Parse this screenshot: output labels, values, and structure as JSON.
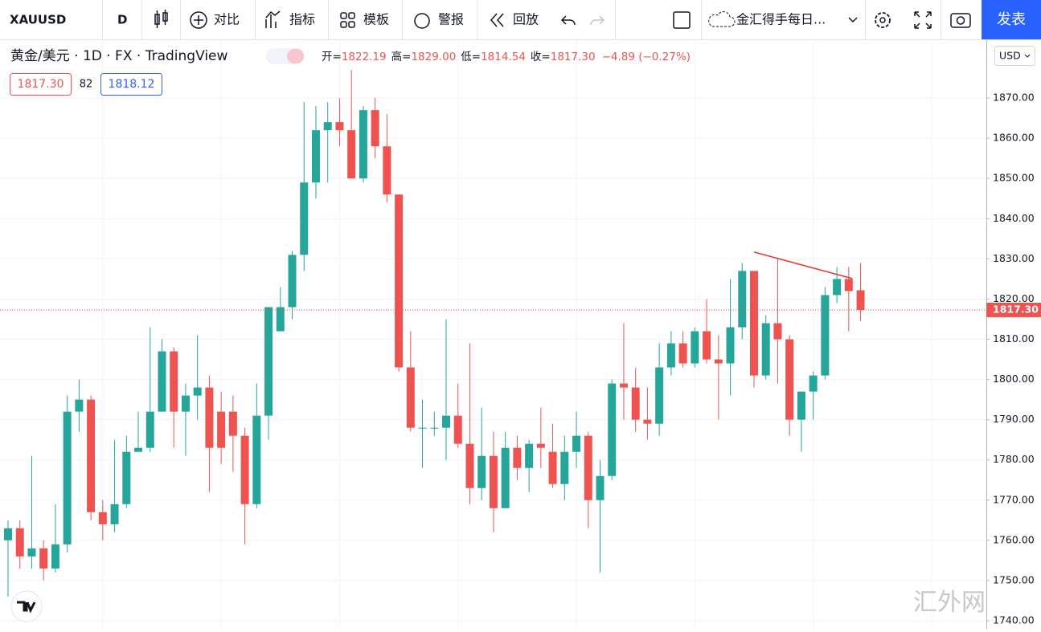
{
  "toolbar": {
    "symbol": "XAUUSD",
    "interval": "D",
    "compare": "对比",
    "indicators": "指标",
    "templates": "模板",
    "alerts": "警报",
    "replay": "回放",
    "layout_name": "金汇得手每日...",
    "publish": "发表"
  },
  "header": {
    "title": "黄金/美元 · 1D · FX · TradingView",
    "ohlc": [
      {
        "label": "开=",
        "value": "1822.19"
      },
      {
        "label": "高=",
        "value": "1829.00"
      },
      {
        "label": "低=",
        "value": "1814.54"
      },
      {
        "label": "收=",
        "value": "1817.30"
      }
    ],
    "change": "−4.89 (−0.27%)",
    "bid": "1817.30",
    "spread": "82",
    "ask": "1818.12"
  },
  "currency": "USD",
  "watermark": "汇外网",
  "chart_data": {
    "type": "candlestick",
    "up_color": "#26a69a",
    "down_color": "#ef5350",
    "open": [
      1760,
      1763,
      1756,
      1758,
      1753,
      1759,
      1792,
      1795,
      1767,
      1764,
      1769,
      1782,
      1783,
      1792,
      1807,
      1792,
      1796,
      1798,
      1792,
      1792,
      1786,
      1769,
      1791,
      1812,
      1818,
      1831,
      1849,
      1862,
      1864,
      1862,
      1850,
      1867,
      1858,
      1846,
      1803,
      1788,
      1788,
      1788,
      1791,
      1784,
      1773,
      1781,
      1768,
      1783,
      1778,
      1784,
      1782,
      1774,
      1782,
      1786,
      1770,
      1776,
      1799,
      1798,
      1790,
      1789,
      1803,
      1809,
      1804,
      1812,
      1805,
      1804,
      1813,
      1827,
      1801,
      1814,
      1810,
      1790,
      1797,
      1801,
      1821,
      1825,
      1822.19
    ],
    "high": [
      1765,
      1765,
      1781,
      1760,
      1769,
      1796,
      1800,
      1796,
      1770,
      1785,
      1786,
      1792,
      1813,
      1810,
      1808,
      1799,
      1811,
      1801,
      1797,
      1796,
      1788,
      1799,
      1818,
      1823,
      1832,
      1869,
      1868,
      1869,
      1870,
      1877,
      1868,
      1870,
      1866,
      1846,
      1812,
      1795,
      1792,
      1815,
      1799,
      1809,
      1793,
      1787,
      1787,
      1786,
      1785,
      1793,
      1789,
      1786,
      1792,
      1787,
      1780,
      1800,
      1814,
      1803,
      1798,
      1809,
      1812,
      1812,
      1813,
      1820,
      1811,
      1825,
      1829,
      1827,
      1816,
      1830,
      1811,
      1797,
      1802,
      1823,
      1828,
      1828,
      1829
    ],
    "low": [
      1746,
      1753,
      1753,
      1750,
      1752,
      1757,
      1787,
      1765,
      1760,
      1762,
      1768,
      1782,
      1782,
      1792,
      1783,
      1781,
      1790,
      1772,
      1779,
      1777,
      1759,
      1768,
      1785,
      1812,
      1815,
      1827,
      1845,
      1849,
      1858,
      1850,
      1849,
      1855,
      1844,
      1802,
      1787,
      1778,
      1786,
      1780,
      1783,
      1769,
      1770,
      1762,
      1768,
      1775,
      1772,
      1778,
      1773,
      1770,
      1778,
      1763,
      1752,
      1775,
      1790,
      1787,
      1785,
      1786,
      1801,
      1803,
      1803,
      1804,
      1790,
      1796,
      1810,
      1798,
      1800,
      1799,
      1786,
      1782,
      1790,
      1800,
      1819,
      1812,
      1814.54
    ],
    "close": [
      1763,
      1756,
      1758,
      1753,
      1759,
      1792,
      1795,
      1767,
      1764,
      1769,
      1782,
      1783,
      1792,
      1807,
      1792,
      1796,
      1798,
      1783,
      1783,
      1786,
      1769,
      1791,
      1818,
      1818,
      1831,
      1849,
      1862,
      1864,
      1862,
      1850,
      1867,
      1858,
      1846,
      1803,
      1788,
      1788,
      1788,
      1791,
      1784,
      1773,
      1781,
      1768,
      1783,
      1778,
      1784,
      1783,
      1774,
      1782,
      1786,
      1770,
      1776,
      1799,
      1798,
      1790,
      1789,
      1803,
      1809,
      1804,
      1812,
      1805,
      1804,
      1813,
      1827,
      1801,
      1814,
      1810,
      1790,
      1797,
      1801,
      1821,
      1825,
      1822,
      1817.3
    ],
    "last_price": {
      "value": 1817.3,
      "label": "1817.30"
    },
    "trend_line": {
      "x": [
        63,
        71.3
      ],
      "values": [
        1831.7,
        1825.1
      ],
      "color": "#e53935"
    },
    "ylim": [
      1738,
      1884.4
    ],
    "yticks": [
      {
        "value": 1740,
        "label": "1740.00"
      },
      {
        "value": 1750,
        "label": "1750.00"
      },
      {
        "value": 1760,
        "label": "1760.00"
      },
      {
        "value": 1770,
        "label": "1770.00"
      },
      {
        "value": 1780,
        "label": "1780.00"
      },
      {
        "value": 1790,
        "label": "1790.00"
      },
      {
        "value": 1800,
        "label": "1800.00"
      },
      {
        "value": 1810,
        "label": "1810.00"
      },
      {
        "value": 1820,
        "label": "1820.00"
      },
      {
        "value": 1830,
        "label": "1830.00"
      },
      {
        "value": 1840,
        "label": "1840.00"
      },
      {
        "value": 1850,
        "label": "1850.00"
      },
      {
        "value": 1860,
        "label": "1860.00"
      },
      {
        "value": 1870,
        "label": "1870.00"
      }
    ],
    "grid": true
  }
}
